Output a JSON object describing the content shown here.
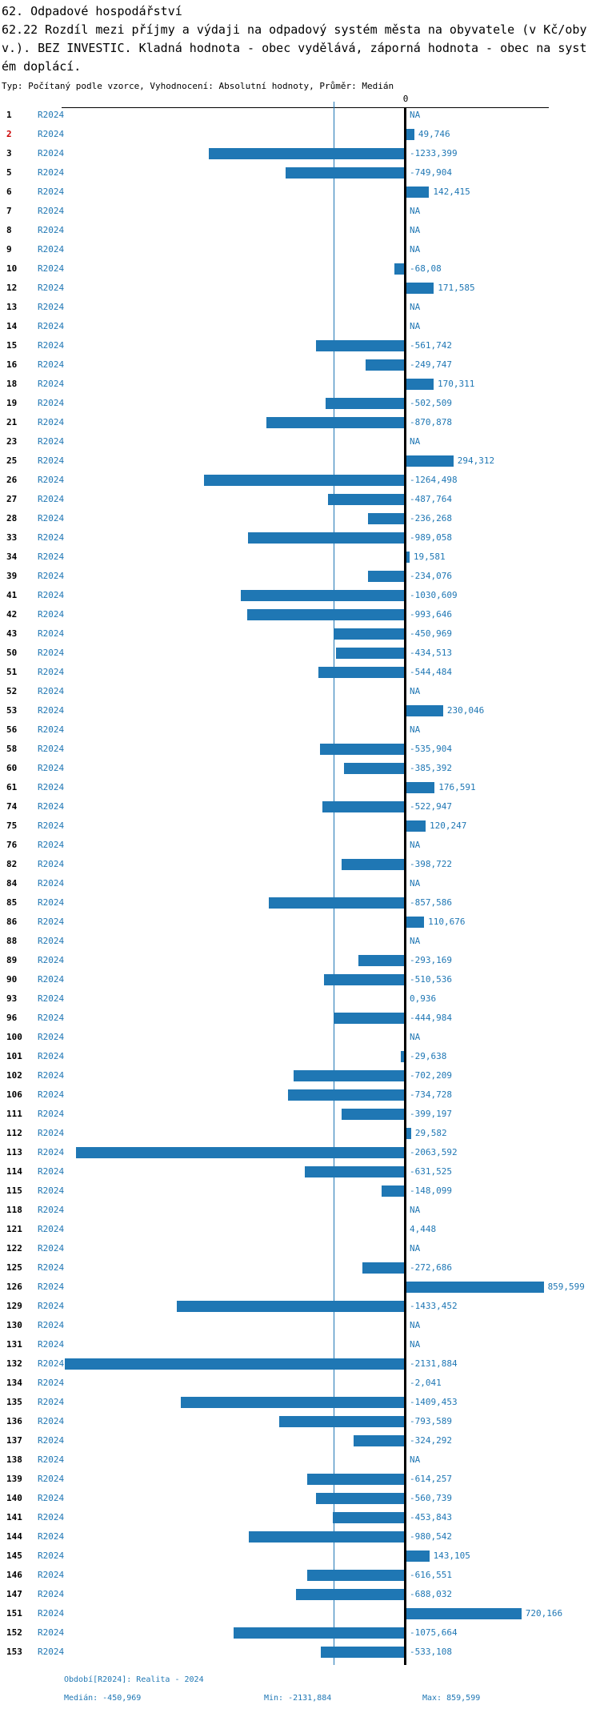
{
  "header": {
    "title": "62. Odpadové hospodářství",
    "subtitle_lines": [
      "62.22 Rozdíl mezi příjmy a výdaji na odpadový systém města na obyvatele (v Kč/oby",
      "v.). BEZ INVESTIC. Kladná hodnota - obec vydělává, záporná hodnota - obec na syst",
      "ém doplácí."
    ],
    "meta": "Typ: Počítaný podle vzorce, Vyhodnocení: Absolutní hodnoty, Průměr: Medián"
  },
  "chart_data": {
    "type": "bar",
    "orientation": "horizontal",
    "title": "62.22 Rozdíl mezi příjmy a výdaji na odpadový systém města na obyvatele (v Kč/obyv.). BEZ INVESTIC.",
    "series_label": "R2024",
    "zero_label": "0",
    "na_label": "NA",
    "xlim": [
      -2150,
      900
    ],
    "grid": false,
    "median_line_value": -450.969,
    "rows": [
      {
        "id": "1",
        "label": "NA",
        "value": null
      },
      {
        "id": "2",
        "label": "49,746",
        "value": 49.746,
        "highlight": true
      },
      {
        "id": "3",
        "label": "-1233,399",
        "value": -1233.399
      },
      {
        "id": "5",
        "label": "-749,904",
        "value": -749.904
      },
      {
        "id": "6",
        "label": "142,415",
        "value": 142.415
      },
      {
        "id": "7",
        "label": "NA",
        "value": null
      },
      {
        "id": "8",
        "label": "NA",
        "value": null
      },
      {
        "id": "9",
        "label": "NA",
        "value": null
      },
      {
        "id": "10",
        "label": "-68,08",
        "value": -68.08
      },
      {
        "id": "12",
        "label": "171,585",
        "value": 171.585
      },
      {
        "id": "13",
        "label": "NA",
        "value": null
      },
      {
        "id": "14",
        "label": "NA",
        "value": null
      },
      {
        "id": "15",
        "label": "-561,742",
        "value": -561.742
      },
      {
        "id": "16",
        "label": "-249,747",
        "value": -249.747
      },
      {
        "id": "18",
        "label": "170,311",
        "value": 170.311
      },
      {
        "id": "19",
        "label": "-502,509",
        "value": -502.509
      },
      {
        "id": "21",
        "label": "-870,878",
        "value": -870.878
      },
      {
        "id": "23",
        "label": "NA",
        "value": null
      },
      {
        "id": "25",
        "label": "294,312",
        "value": 294.312
      },
      {
        "id": "26",
        "label": "-1264,498",
        "value": -1264.498
      },
      {
        "id": "27",
        "label": "-487,764",
        "value": -487.764
      },
      {
        "id": "28",
        "label": "-236,268",
        "value": -236.268
      },
      {
        "id": "33",
        "label": "-989,058",
        "value": -989.058
      },
      {
        "id": "34",
        "label": "19,581",
        "value": 19.581
      },
      {
        "id": "39",
        "label": "-234,076",
        "value": -234.076
      },
      {
        "id": "41",
        "label": "-1030,609",
        "value": -1030.609
      },
      {
        "id": "42",
        "label": "-993,646",
        "value": -993.646
      },
      {
        "id": "43",
        "label": "-450,969",
        "value": -450.969
      },
      {
        "id": "50",
        "label": "-434,513",
        "value": -434.513
      },
      {
        "id": "51",
        "label": "-544,484",
        "value": -544.484
      },
      {
        "id": "52",
        "label": "NA",
        "value": null
      },
      {
        "id": "53",
        "label": "230,046",
        "value": 230.046
      },
      {
        "id": "56",
        "label": "NA",
        "value": null
      },
      {
        "id": "58",
        "label": "-535,904",
        "value": -535.904
      },
      {
        "id": "60",
        "label": "-385,392",
        "value": -385.392
      },
      {
        "id": "61",
        "label": "176,591",
        "value": 176.591
      },
      {
        "id": "74",
        "label": "-522,947",
        "value": -522.947
      },
      {
        "id": "75",
        "label": "120,247",
        "value": 120.247
      },
      {
        "id": "76",
        "label": "NA",
        "value": null
      },
      {
        "id": "82",
        "label": "-398,722",
        "value": -398.722
      },
      {
        "id": "84",
        "label": "NA",
        "value": null
      },
      {
        "id": "85",
        "label": "-857,586",
        "value": -857.586
      },
      {
        "id": "86",
        "label": "110,676",
        "value": 110.676
      },
      {
        "id": "88",
        "label": "NA",
        "value": null
      },
      {
        "id": "89",
        "label": "-293,169",
        "value": -293.169
      },
      {
        "id": "90",
        "label": "-510,536",
        "value": -510.536
      },
      {
        "id": "93",
        "label": "0,936",
        "value": 0.936
      },
      {
        "id": "96",
        "label": "-444,984",
        "value": -444.984
      },
      {
        "id": "100",
        "label": "NA",
        "value": null
      },
      {
        "id": "101",
        "label": "-29,638",
        "value": -29.638
      },
      {
        "id": "102",
        "label": "-702,209",
        "value": -702.209
      },
      {
        "id": "106",
        "label": "-734,728",
        "value": -734.728
      },
      {
        "id": "111",
        "label": "-399,197",
        "value": -399.197
      },
      {
        "id": "112",
        "label": "29,582",
        "value": 29.582
      },
      {
        "id": "113",
        "label": "-2063,592",
        "value": -2063.592
      },
      {
        "id": "114",
        "label": "-631,525",
        "value": -631.525
      },
      {
        "id": "115",
        "label": "-148,099",
        "value": -148.099
      },
      {
        "id": "118",
        "label": "NA",
        "value": null
      },
      {
        "id": "121",
        "label": "4,448",
        "value": 4.448
      },
      {
        "id": "122",
        "label": "NA",
        "value": null
      },
      {
        "id": "125",
        "label": "-272,686",
        "value": -272.686
      },
      {
        "id": "126",
        "label": "859,599",
        "value": 859.599
      },
      {
        "id": "129",
        "label": "-1433,452",
        "value": -1433.452
      },
      {
        "id": "130",
        "label": "NA",
        "value": null
      },
      {
        "id": "131",
        "label": "NA",
        "value": null
      },
      {
        "id": "132",
        "label": "-2131,884",
        "value": -2131.884
      },
      {
        "id": "134",
        "label": "-2,041",
        "value": -2.041
      },
      {
        "id": "135",
        "label": "-1409,453",
        "value": -1409.453
      },
      {
        "id": "136",
        "label": "-793,589",
        "value": -793.589
      },
      {
        "id": "137",
        "label": "-324,292",
        "value": -324.292
      },
      {
        "id": "138",
        "label": "NA",
        "value": null
      },
      {
        "id": "139",
        "label": "-614,257",
        "value": -614.257
      },
      {
        "id": "140",
        "label": "-560,739",
        "value": -560.739
      },
      {
        "id": "141",
        "label": "-453,843",
        "value": -453.843
      },
      {
        "id": "144",
        "label": "-980,542",
        "value": -980.542
      },
      {
        "id": "145",
        "label": "143,105",
        "value": 143.105
      },
      {
        "id": "146",
        "label": "-616,551",
        "value": -616.551
      },
      {
        "id": "147",
        "label": "-688,032",
        "value": -688.032
      },
      {
        "id": "151",
        "label": "720,166",
        "value": 720.166
      },
      {
        "id": "152",
        "label": "-1075,664",
        "value": -1075.664
      },
      {
        "id": "153",
        "label": "-533,108",
        "value": -533.108
      }
    ]
  },
  "footer": {
    "period": "Období[R2024]: Realita - 2024",
    "median_label": "Medián: -450,969",
    "min_label": "Min: -2131,884",
    "max_label": "Max: 859,599"
  },
  "colors": {
    "bar_blue": "#1f77b4",
    "highlight_red": "#cc0000",
    "axis_black": "#000000",
    "background": "#ffffff"
  }
}
